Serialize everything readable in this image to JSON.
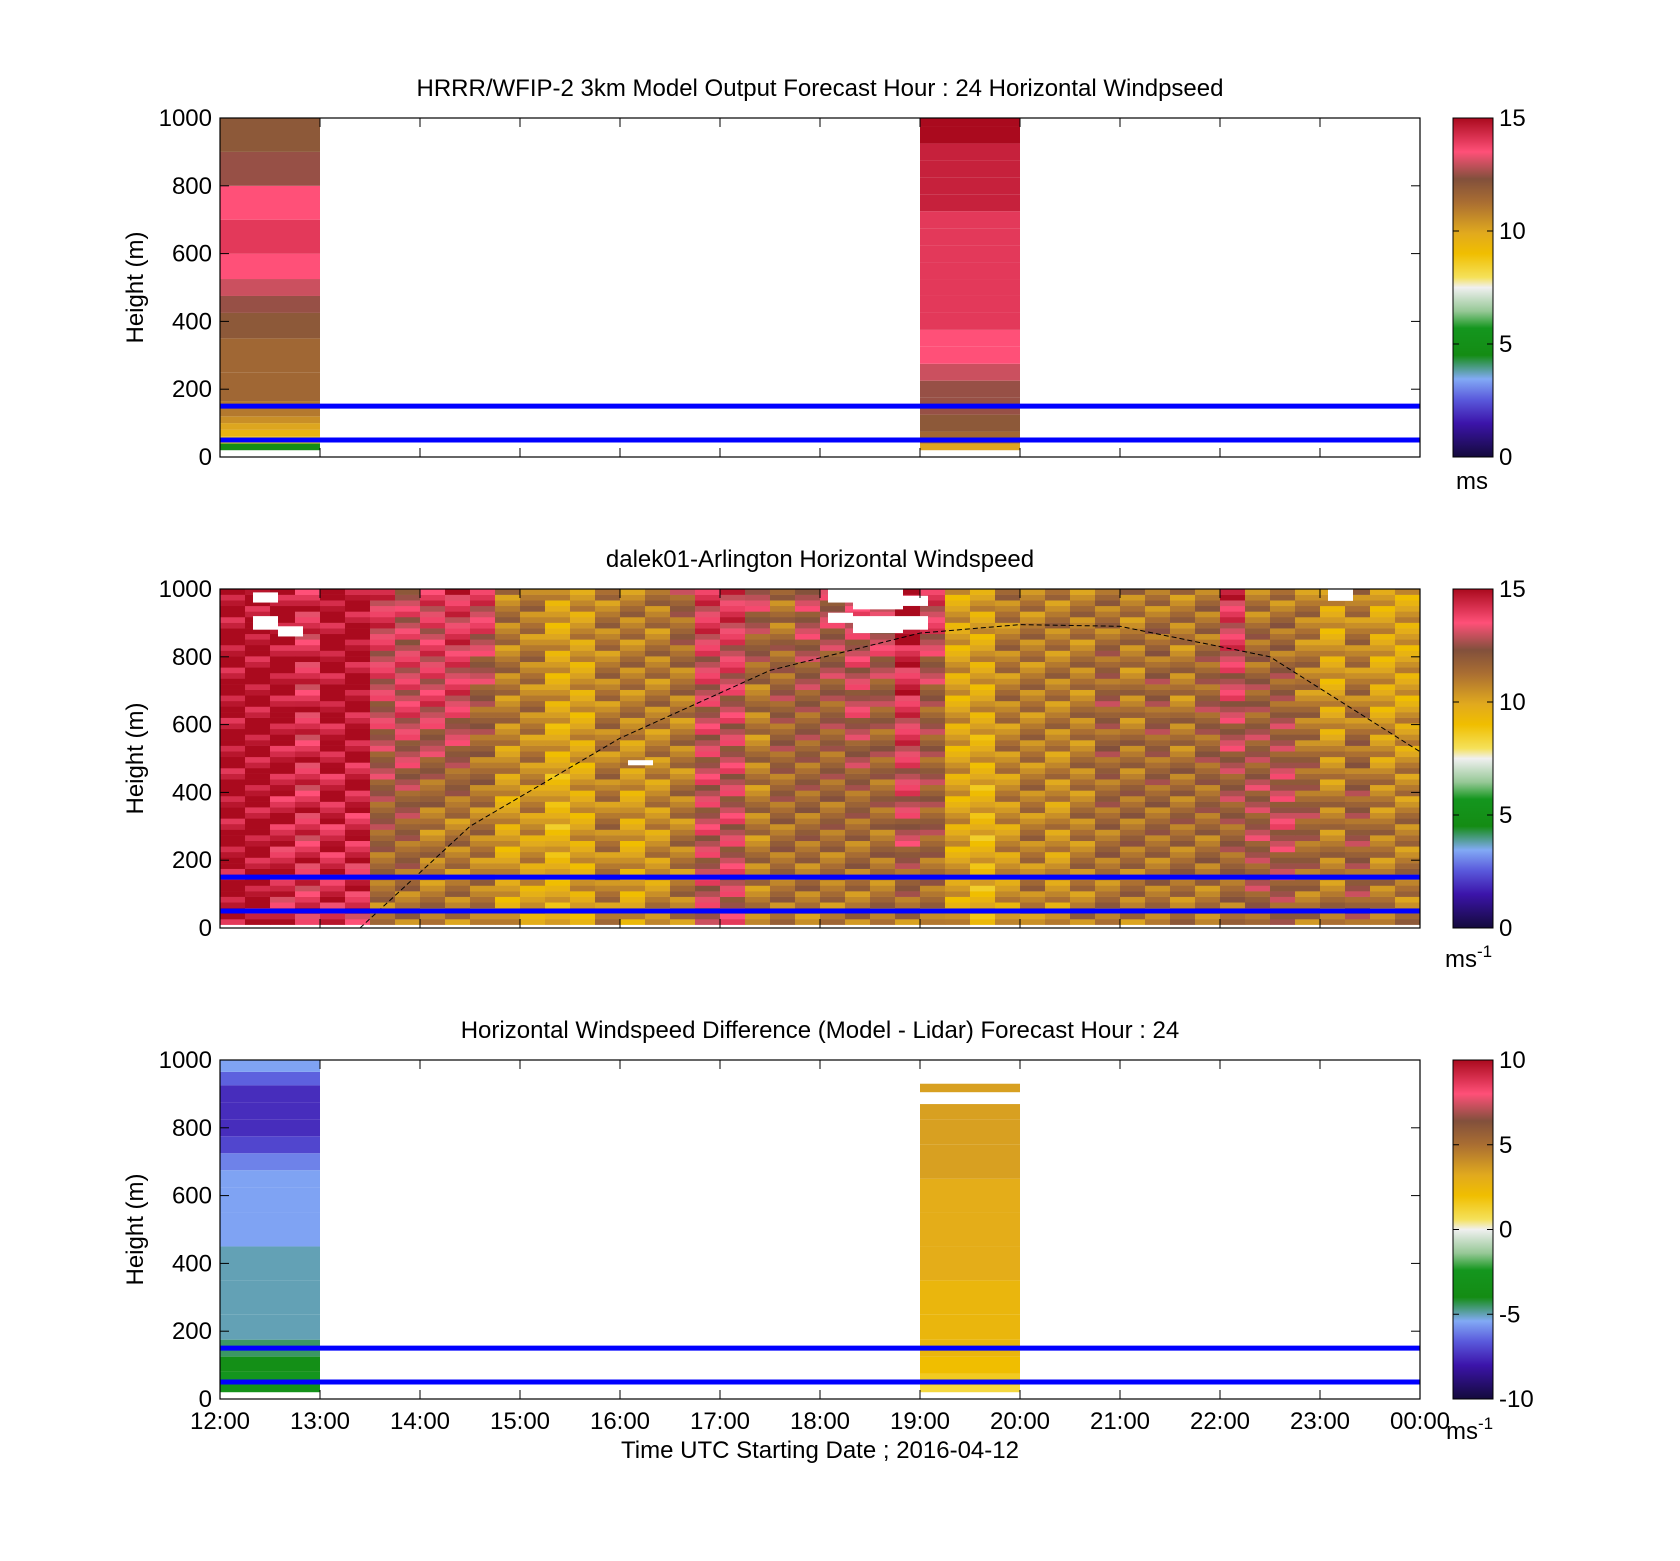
{
  "figure": {
    "xlabel": "Time UTC  Starting Date ; 2016-04-12",
    "x_ticks": [
      "12:00",
      "13:00",
      "14:00",
      "15:00",
      "16:00",
      "17:00",
      "18:00",
      "19:00",
      "20:00",
      "21:00",
      "22:00",
      "23:00",
      "00:00"
    ],
    "reference_lines_m": [
      50,
      150
    ],
    "reference_line_color": "#0000ff"
  },
  "chart_data": [
    {
      "type": "heatmap",
      "title": "HRRR/WFIP-2 3km Model Output   Forecast Hour : 24 Horizontal Windpseed",
      "ylabel": "Height (m)",
      "x_range_hours": [
        12,
        24
      ],
      "ylim": [
        0,
        1000
      ],
      "y_ticks": [
        "0",
        "200",
        "400",
        "600",
        "800",
        "1000"
      ],
      "colorbar": {
        "range": [
          0,
          15
        ],
        "ticks": [
          "0",
          "5",
          "10",
          "15"
        ],
        "unit": "ms",
        "unit_sup": ""
      },
      "columns": [
        {
          "start_hour": 12,
          "end_hour": 13,
          "heights_m": [
            30,
            50,
            70,
            90,
            110,
            130,
            200,
            300,
            400,
            450,
            500,
            550,
            650,
            750,
            850,
            950
          ],
          "values": [
            4.5,
            8.5,
            9.5,
            10.0,
            10.5,
            11.0,
            11.5,
            11.5,
            12.0,
            12.5,
            13.0,
            13.5,
            14.0,
            13.5,
            12.5,
            12.0
          ]
        },
        {
          "start_hour": 19,
          "end_hour": 20,
          "heights_m": [
            30,
            50,
            100,
            150,
            200,
            250,
            300,
            350,
            400,
            450,
            500,
            550,
            600,
            650,
            700,
            750,
            800,
            850,
            900,
            950,
            1000
          ],
          "values": [
            10.0,
            11.5,
            12.0,
            12.5,
            12.5,
            13.0,
            13.5,
            13.5,
            14.0,
            14.0,
            14.0,
            14.0,
            14.0,
            14.0,
            14.0,
            14.5,
            14.5,
            14.5,
            14.5,
            15.0,
            15.0
          ]
        }
      ]
    },
    {
      "type": "heatmap",
      "title": "dalek01-Arlington  Horizontal Windspeed",
      "ylabel": "Height (m)",
      "x_range_hours": [
        12,
        24
      ],
      "ylim": [
        0,
        1000
      ],
      "y_ticks": [
        "0",
        "200",
        "400",
        "600",
        "800",
        "1000"
      ],
      "colorbar": {
        "range": [
          0,
          15
        ],
        "ticks": [
          "0",
          "5",
          "10",
          "15"
        ],
        "unit": "ms",
        "unit_sup": "-1"
      },
      "column_start_hour": 12,
      "column_width_hours": 0.25,
      "column_profiles": [
        [
          15,
          15,
          15,
          15
        ],
        [
          15,
          15,
          15,
          15
        ],
        [
          14,
          14.5,
          15,
          15
        ],
        [
          14,
          14,
          14,
          14
        ],
        [
          14,
          14.5,
          15,
          15
        ],
        [
          14,
          14.5,
          15,
          15
        ],
        [
          11,
          12,
          13,
          14
        ],
        [
          11,
          12,
          13.5,
          13
        ],
        [
          11,
          11,
          13.5,
          13.5
        ],
        [
          11,
          11,
          13.5,
          14
        ],
        [
          11,
          11,
          12,
          14
        ],
        [
          10,
          10,
          11,
          11
        ],
        [
          10,
          10.5,
          11,
          11
        ],
        [
          9.5,
          9.5,
          10,
          10
        ],
        [
          10,
          10,
          10,
          10.5
        ],
        [
          11,
          11,
          11,
          11
        ],
        [
          10,
          10,
          11,
          11
        ],
        [
          10.5,
          10.5,
          11,
          11
        ],
        [
          11,
          11,
          11,
          12
        ],
        [
          13,
          13,
          13,
          14
        ],
        [
          13,
          13,
          13,
          14
        ],
        [
          11,
          11,
          11,
          13
        ],
        [
          11,
          11.5,
          12,
          11
        ],
        [
          11,
          11.5,
          12,
          13
        ],
        [
          11,
          11.5,
          12,
          13
        ],
        [
          11,
          11.5,
          13,
          13
        ],
        [
          11,
          11.5,
          12,
          14
        ],
        [
          11,
          13,
          14,
          15
        ],
        [
          11,
          12,
          12,
          14
        ],
        [
          10,
          10,
          10,
          10
        ],
        [
          9.5,
          9.5,
          10,
          10
        ],
        [
          10,
          10.5,
          11,
          11
        ],
        [
          11,
          11,
          11,
          11
        ],
        [
          10.5,
          10.5,
          11,
          11
        ],
        [
          11,
          11,
          11,
          11
        ],
        [
          11,
          11.5,
          12,
          11
        ],
        [
          11,
          11.5,
          11,
          11
        ],
        [
          11,
          11.5,
          12,
          11
        ],
        [
          11,
          11.5,
          11,
          11
        ],
        [
          11,
          11.5,
          12,
          11
        ],
        [
          11,
          12,
          13,
          14
        ],
        [
          12,
          12.5,
          12,
          11
        ],
        [
          12,
          13,
          12,
          11
        ],
        [
          11,
          12,
          11,
          11
        ],
        [
          11,
          11,
          10,
          10
        ],
        [
          12,
          12,
          11,
          11
        ],
        [
          11,
          11,
          10,
          10
        ],
        [
          11,
          11,
          10,
          10
        ]
      ],
      "missing_patches": [
        {
          "start_hour": 12.33,
          "end_hour": 12.58,
          "from_m": 960,
          "to_m": 990
        },
        {
          "start_hour": 12.33,
          "end_hour": 12.58,
          "from_m": 880,
          "to_m": 920
        },
        {
          "start_hour": 12.58,
          "end_hour": 12.83,
          "from_m": 860,
          "to_m": 890
        },
        {
          "start_hour": 16.08,
          "end_hour": 16.33,
          "from_m": 480,
          "to_m": 495
        },
        {
          "start_hour": 18.08,
          "end_hour": 18.33,
          "from_m": 960,
          "to_m": 1000
        },
        {
          "start_hour": 18.08,
          "end_hour": 18.33,
          "from_m": 900,
          "to_m": 930
        },
        {
          "start_hour": 18.33,
          "end_hour": 18.83,
          "from_m": 940,
          "to_m": 1000
        },
        {
          "start_hour": 18.33,
          "end_hour": 18.83,
          "from_m": 870,
          "to_m": 920
        },
        {
          "start_hour": 18.83,
          "end_hour": 19.08,
          "from_m": 950,
          "to_m": 980
        },
        {
          "start_hour": 18.83,
          "end_hour": 19.08,
          "from_m": 880,
          "to_m": 920
        },
        {
          "start_hour": 23.08,
          "end_hour": 23.33,
          "from_m": 965,
          "to_m": 1000
        }
      ],
      "dashed_curve": {
        "x_hours": [
          13.4,
          14.5,
          16.0,
          17.5,
          19.0,
          20.0,
          21.0,
          22.5,
          24.0
        ],
        "height_m": [
          0,
          300,
          560,
          760,
          870,
          895,
          890,
          800,
          520
        ]
      }
    },
    {
      "type": "heatmap",
      "title": "Horizontal Windspeed Difference (Model - Lidar) Forecast Hour : 24",
      "ylabel": "Height (m)",
      "x_range_hours": [
        12,
        24
      ],
      "ylim": [
        0,
        1000
      ],
      "y_ticks": [
        "0",
        "200",
        "400",
        "600",
        "800",
        "1000"
      ],
      "colorbar": {
        "range": [
          -10,
          10
        ],
        "ticks": [
          "-10",
          "-5",
          "0",
          "5",
          "10"
        ],
        "unit": "ms",
        "unit_sup": "-1"
      },
      "columns": [
        {
          "start_hour": 12,
          "end_hour": 13,
          "heights_m": [
            30,
            60,
            100,
            150,
            200,
            300,
            400,
            500,
            600,
            650,
            700,
            750,
            800,
            850,
            900,
            950,
            980
          ],
          "values": [
            -3.0,
            -2.5,
            -3.5,
            -4.5,
            -5.0,
            -5.0,
            -5.0,
            -5.5,
            -5.5,
            -5.5,
            -6.0,
            -7.0,
            -7.5,
            -7.5,
            -7.5,
            -6.5,
            -5.5
          ]
        },
        {
          "start_hour": 19,
          "end_hour": 20,
          "heights_m": [
            30,
            50,
            100,
            150,
            200,
            300,
            400,
            500,
            600,
            700,
            800,
            850,
            920
          ],
          "values": [
            1.0,
            1.5,
            2.0,
            2.5,
            2.5,
            2.5,
            3.0,
            3.0,
            3.0,
            3.5,
            3.5,
            3.5,
            3.5
          ],
          "gaps_m": [
            [
              870,
              905
            ],
            [
              930,
              1000
            ]
          ]
        }
      ]
    }
  ]
}
